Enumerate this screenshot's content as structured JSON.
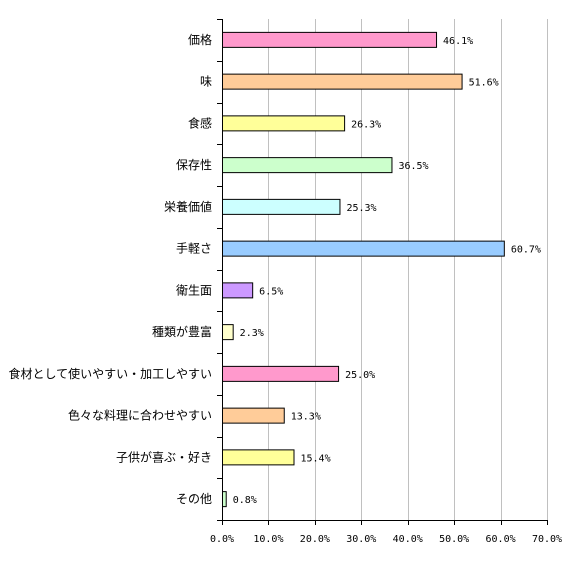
{
  "chart_data": {
    "type": "bar",
    "orientation": "horizontal",
    "categories": [
      "価格",
      "味",
      "食感",
      "保存性",
      "栄養価値",
      "手軽さ",
      "衛生面",
      "種類が豊富",
      "食材として使いやすい・加工しやすい",
      "色々な料理に合わせやすい",
      "子供が喜ぶ・好き",
      "その他"
    ],
    "values": [
      46.1,
      51.6,
      26.3,
      36.5,
      25.3,
      60.7,
      6.5,
      2.3,
      25.0,
      13.3,
      15.4,
      0.8
    ],
    "value_labels": [
      "46.1%",
      "51.6%",
      "26.3%",
      "36.5%",
      "25.3%",
      "60.7%",
      "6.5%",
      "2.3%",
      "25.0%",
      "13.3%",
      "15.4%",
      "0.8%"
    ],
    "bar_colors": [
      "#ff99cc",
      "#ffcc99",
      "#ffff99",
      "#ccffcc",
      "#ccffff",
      "#99ccff",
      "#cc99ff",
      "#ffffcc",
      "#ff99cc",
      "#ffcc99",
      "#ffff99",
      "#ccffcc"
    ],
    "xlim": [
      0,
      70
    ],
    "x_ticks": [
      0,
      10,
      20,
      30,
      40,
      50,
      60,
      70
    ],
    "x_tick_labels": [
      "0.0%",
      "10.0%",
      "20.0%",
      "30.0%",
      "40.0%",
      "50.0%",
      "60.0%",
      "70.0%"
    ],
    "grid": true,
    "legend": "none"
  }
}
